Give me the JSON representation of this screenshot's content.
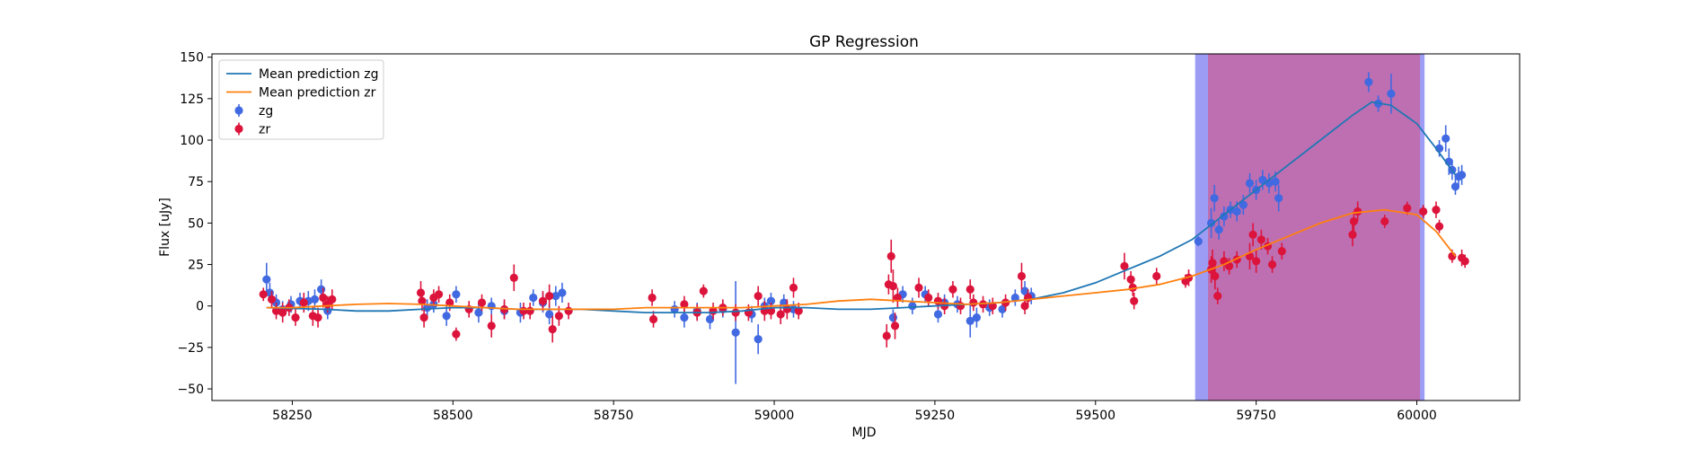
{
  "chart_data": {
    "type": "scatter",
    "title": "GP Regression",
    "xlabel": "MJD",
    "ylabel": "Flux [uJy]",
    "xlim": [
      58125,
      60160
    ],
    "ylim": [
      -57,
      152
    ],
    "xticks": [
      58250,
      58500,
      58750,
      59000,
      59250,
      59500,
      59750,
      60000
    ],
    "yticks": [
      -50,
      -25,
      0,
      25,
      50,
      75,
      100,
      125,
      150
    ],
    "grid": false,
    "legend_position": "top-left",
    "colors": {
      "zg": "#4169e1",
      "zr": "#dc143c",
      "line_zg": "#1f77b4",
      "line_zr": "#ff7f0e",
      "span_blue": "#7b7bf0",
      "span_red": "#c9609b"
    },
    "shaded_regions": [
      {
        "x0": 59655,
        "x1": 60012,
        "color": "#7b7bf0"
      },
      {
        "x0": 59675,
        "x1": 60005,
        "color": "#c9609b"
      }
    ],
    "series": [
      {
        "name": "Mean prediction zg",
        "kind": "line",
        "x": [
          58210,
          58250,
          58300,
          58350,
          58400,
          58450,
          58500,
          58550,
          58600,
          58650,
          58700,
          58750,
          58800,
          58850,
          58900,
          58950,
          59000,
          59050,
          59100,
          59150,
          59200,
          59250,
          59300,
          59350,
          59400,
          59450,
          59500,
          59550,
          59600,
          59650,
          59700,
          59750,
          59800,
          59850,
          59900,
          59930,
          59960,
          60000,
          60030,
          60060
        ],
        "y": [
          -1,
          -1.5,
          -2,
          -3,
          -3,
          -2,
          -1,
          -1,
          -2,
          -2,
          -2,
          -3,
          -4,
          -4,
          -4,
          -3,
          -1,
          -1,
          -2,
          -2,
          -1,
          0,
          1,
          2,
          4,
          8,
          14,
          22,
          30,
          40,
          55,
          70,
          85,
          100,
          115,
          123,
          121,
          110,
          95,
          79
        ]
      },
      {
        "name": "Mean prediction zr",
        "kind": "line",
        "x": [
          58210,
          58250,
          58300,
          58350,
          58400,
          58450,
          58500,
          58550,
          58600,
          58650,
          58700,
          58750,
          58800,
          58850,
          58900,
          58950,
          59000,
          59050,
          59100,
          59150,
          59200,
          59250,
          59300,
          59350,
          59400,
          59450,
          59500,
          59550,
          59600,
          59650,
          59700,
          59750,
          59800,
          59850,
          59900,
          59950,
          60000,
          60030,
          60060
        ],
        "y": [
          -1,
          -1,
          0,
          1,
          1.5,
          1,
          0,
          -1,
          -2,
          -2,
          -2,
          -2,
          -1,
          -1,
          -1,
          -1,
          0,
          1,
          3,
          4,
          3,
          2,
          1,
          2,
          4,
          6,
          8,
          10,
          13,
          18,
          25,
          34,
          42,
          50,
          56,
          58,
          55,
          45,
          30
        ]
      },
      {
        "name": "zg",
        "kind": "errorbar",
        "points": [
          [
            58210,
            16,
            10
          ],
          [
            58215,
            8,
            6
          ],
          [
            58225,
            2,
            5
          ],
          [
            58235,
            -2,
            5
          ],
          [
            58248,
            1,
            5
          ],
          [
            58262,
            3,
            5
          ],
          [
            58275,
            3,
            6
          ],
          [
            58285,
            4,
            6
          ],
          [
            58295,
            10,
            6
          ],
          [
            58305,
            -3,
            5
          ],
          [
            58460,
            -1,
            5
          ],
          [
            58470,
            1,
            5
          ],
          [
            58490,
            -6,
            6
          ],
          [
            58505,
            7,
            5
          ],
          [
            58540,
            -4,
            6
          ],
          [
            58560,
            0,
            5
          ],
          [
            58580,
            -3,
            5
          ],
          [
            58605,
            -4,
            6
          ],
          [
            58625,
            5,
            5
          ],
          [
            58640,
            2,
            6
          ],
          [
            58650,
            -5,
            6
          ],
          [
            58660,
            6,
            6
          ],
          [
            58670,
            8,
            6
          ],
          [
            58845,
            -2,
            5
          ],
          [
            58860,
            -7,
            6
          ],
          [
            58880,
            -3,
            5
          ],
          [
            58900,
            -8,
            6
          ],
          [
            58920,
            -2,
            5
          ],
          [
            58940,
            -16,
            31
          ],
          [
            58965,
            -5,
            5
          ],
          [
            58975,
            -20,
            9
          ],
          [
            58985,
            0,
            5
          ],
          [
            58995,
            3,
            5
          ],
          [
            59015,
            2,
            5
          ],
          [
            59030,
            -2,
            5
          ],
          [
            59185,
            -7,
            5
          ],
          [
            59200,
            7,
            5
          ],
          [
            59215,
            0,
            5
          ],
          [
            59235,
            7,
            5
          ],
          [
            59255,
            -5,
            5
          ],
          [
            59265,
            2,
            5
          ],
          [
            59285,
            1,
            5
          ],
          [
            59305,
            -9,
            10
          ],
          [
            59315,
            -7,
            6
          ],
          [
            59335,
            -1,
            5
          ],
          [
            59355,
            -2,
            5
          ],
          [
            59375,
            5,
            5
          ],
          [
            59390,
            9,
            6
          ],
          [
            59400,
            6,
            5
          ],
          [
            59660,
            39,
            3
          ],
          [
            59680,
            50,
            9
          ],
          [
            59685,
            65,
            8
          ],
          [
            59692,
            46,
            6
          ],
          [
            59700,
            54,
            6
          ],
          [
            59710,
            58,
            5
          ],
          [
            59720,
            57,
            6
          ],
          [
            59730,
            61,
            6
          ],
          [
            59740,
            74,
            6
          ],
          [
            59750,
            70,
            6
          ],
          [
            59760,
            76,
            6
          ],
          [
            59770,
            74,
            6
          ],
          [
            59780,
            75,
            6
          ],
          [
            59785,
            65,
            8
          ],
          [
            59925,
            135,
            6
          ],
          [
            59940,
            122,
            5
          ],
          [
            59960,
            128,
            12
          ],
          [
            60035,
            95,
            5
          ],
          [
            60045,
            101,
            8
          ],
          [
            60050,
            87,
            8
          ],
          [
            60055,
            82,
            6
          ],
          [
            60060,
            72,
            5
          ],
          [
            60065,
            78,
            6
          ],
          [
            60070,
            79,
            6
          ]
        ]
      },
      {
        "name": "zr",
        "kind": "errorbar",
        "points": [
          [
            58205,
            7,
            4
          ],
          [
            58218,
            4,
            5
          ],
          [
            58225,
            -3,
            5
          ],
          [
            58235,
            -4,
            6
          ],
          [
            58245,
            -1,
            5
          ],
          [
            58255,
            -7,
            5
          ],
          [
            58268,
            2,
            6
          ],
          [
            58282,
            -6,
            6
          ],
          [
            58290,
            -7,
            6
          ],
          [
            58298,
            5,
            6
          ],
          [
            58305,
            1,
            5
          ],
          [
            58312,
            4,
            6
          ],
          [
            58450,
            8,
            7
          ],
          [
            58452,
            3,
            6
          ],
          [
            58455,
            -7,
            6
          ],
          [
            58470,
            5,
            5
          ],
          [
            58478,
            7,
            5
          ],
          [
            58495,
            2,
            5
          ],
          [
            58505,
            -17,
            4
          ],
          [
            58525,
            -2,
            5
          ],
          [
            58545,
            2,
            5
          ],
          [
            58560,
            -12,
            7
          ],
          [
            58580,
            -2,
            6
          ],
          [
            58595,
            17,
            8
          ],
          [
            58610,
            -3,
            5
          ],
          [
            58620,
            -3,
            5
          ],
          [
            58640,
            3,
            6
          ],
          [
            58650,
            6,
            7
          ],
          [
            58655,
            -14,
            8
          ],
          [
            58665,
            -6,
            6
          ],
          [
            58680,
            -3,
            5
          ],
          [
            58810,
            5,
            5
          ],
          [
            58812,
            -8,
            5
          ],
          [
            58860,
            1,
            5
          ],
          [
            58880,
            -4,
            5
          ],
          [
            58890,
            9,
            4
          ],
          [
            58905,
            -3,
            5
          ],
          [
            58920,
            -1,
            5
          ],
          [
            58940,
            -4,
            5
          ],
          [
            58960,
            -4,
            5
          ],
          [
            58975,
            6,
            6
          ],
          [
            58985,
            -3,
            6
          ],
          [
            58995,
            -3,
            5
          ],
          [
            59010,
            -5,
            6
          ],
          [
            59020,
            -2,
            6
          ],
          [
            59030,
            11,
            6
          ],
          [
            59038,
            -3,
            5
          ],
          [
            59175,
            -18,
            7
          ],
          [
            59178,
            13,
            6
          ],
          [
            59182,
            30,
            10
          ],
          [
            59185,
            12,
            10
          ],
          [
            59188,
            -12,
            8
          ],
          [
            59192,
            5,
            6
          ],
          [
            59225,
            11,
            6
          ],
          [
            59240,
            5,
            5
          ],
          [
            59255,
            3,
            5
          ],
          [
            59265,
            0,
            5
          ],
          [
            59278,
            10,
            5
          ],
          [
            59290,
            0,
            5
          ],
          [
            59305,
            10,
            6
          ],
          [
            59310,
            2,
            5
          ],
          [
            59325,
            1,
            5
          ],
          [
            59340,
            0,
            5
          ],
          [
            59360,
            2,
            5
          ],
          [
            59385,
            18,
            8
          ],
          [
            59390,
            0,
            5
          ],
          [
            59395,
            5,
            5
          ],
          [
            59545,
            24,
            8
          ],
          [
            59555,
            16,
            5
          ],
          [
            59558,
            11,
            5
          ],
          [
            59560,
            3,
            5
          ],
          [
            59595,
            18,
            5
          ],
          [
            59640,
            15,
            4
          ],
          [
            59645,
            17,
            5
          ],
          [
            59680,
            22,
            8
          ],
          [
            59682,
            26,
            8
          ],
          [
            59686,
            18,
            8
          ],
          [
            59690,
            6,
            5
          ],
          [
            59700,
            27,
            6
          ],
          [
            59708,
            24,
            5
          ],
          [
            59720,
            28,
            5
          ],
          [
            59740,
            30,
            8
          ],
          [
            59745,
            43,
            7
          ],
          [
            59750,
            27,
            7
          ],
          [
            59758,
            40,
            6
          ],
          [
            59768,
            36,
            5
          ],
          [
            59775,
            25,
            5
          ],
          [
            59790,
            33,
            5
          ],
          [
            59900,
            43,
            7
          ],
          [
            59902,
            51,
            6
          ],
          [
            59908,
            57,
            6
          ],
          [
            59950,
            51,
            4
          ],
          [
            59985,
            59,
            4
          ],
          [
            60010,
            57,
            4
          ],
          [
            60030,
            58,
            5
          ],
          [
            60035,
            48,
            4
          ],
          [
            60055,
            30,
            4
          ],
          [
            60070,
            29,
            5
          ],
          [
            60075,
            27,
            4
          ]
        ]
      }
    ]
  }
}
